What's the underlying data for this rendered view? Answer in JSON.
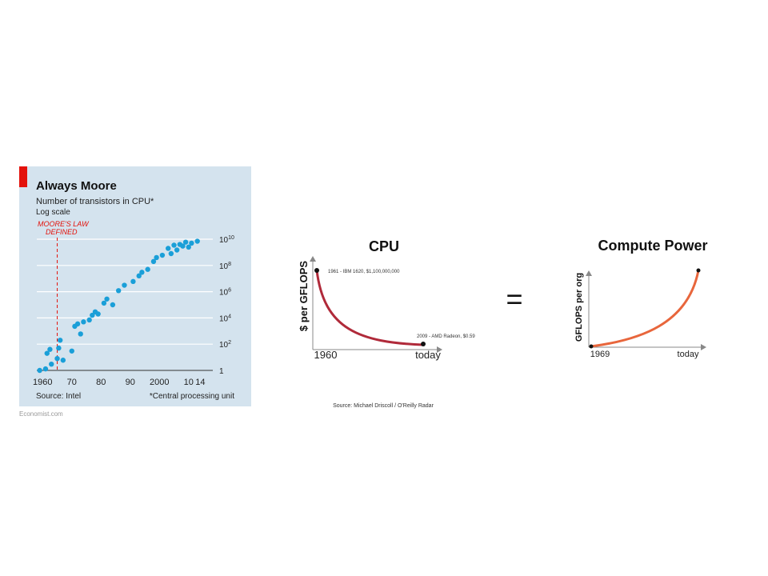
{
  "colors": {
    "panel_bg": "#d4e3ee",
    "accent_red": "#e3120b",
    "dot_blue": "#1a9fd8",
    "cpu_curve": "#b02a3a",
    "compute_curve": "#e8663c"
  },
  "equals_sign": "=",
  "economist_source": "Economist.com",
  "chart_data": [
    {
      "type": "scatter",
      "title": "Always Moore",
      "subtitle": "Number of transistors in CPU*",
      "scale_note": "Log scale",
      "annotation": [
        "MOORE'S LAW",
        "DEFINED"
      ],
      "annotation_x": 1965,
      "source": "Source: Intel",
      "footnote": "*Central processing unit",
      "y_scale": "log",
      "xlim": [
        1958,
        2015
      ],
      "ylim": [
        1,
        10000000000
      ],
      "grid": true,
      "x_ticks": [
        {
          "value": 1960,
          "label": "1960"
        },
        {
          "value": 1970,
          "label": "70"
        },
        {
          "value": 1980,
          "label": "80"
        },
        {
          "value": 1990,
          "label": "90"
        },
        {
          "value": 2000,
          "label": "2000"
        },
        {
          "value": 2010,
          "label": "10"
        },
        {
          "value": 2014,
          "label": "14"
        }
      ],
      "y_ticks": [
        {
          "value": 1,
          "base": "1",
          "exp": ""
        },
        {
          "value": 100,
          "base": "10",
          "exp": "2"
        },
        {
          "value": 10000,
          "base": "10",
          "exp": "4"
        },
        {
          "value": 1000000,
          "base": "10",
          "exp": "6"
        },
        {
          "value": 100000000,
          "base": "10",
          "exp": "8"
        },
        {
          "value": 10000000000,
          "base": "10",
          "exp": "10"
        }
      ],
      "points": [
        [
          1959,
          1
        ],
        [
          1961,
          1.3
        ],
        [
          1961.5,
          20
        ],
        [
          1962.5,
          40
        ],
        [
          1963,
          3
        ],
        [
          1965,
          8
        ],
        [
          1965.5,
          50
        ],
        [
          1966,
          200
        ],
        [
          1967,
          6
        ],
        [
          1970,
          30
        ],
        [
          1971,
          2300
        ],
        [
          1972,
          3500
        ],
        [
          1973,
          600
        ],
        [
          1974,
          5000
        ],
        [
          1976,
          7000
        ],
        [
          1977,
          16000
        ],
        [
          1978,
          29000
        ],
        [
          1979,
          20000
        ],
        [
          1981,
          134000
        ],
        [
          1982,
          275000
        ],
        [
          1984,
          100000
        ],
        [
          1986,
          1200000
        ],
        [
          1988,
          3100000
        ],
        [
          1991,
          6000000
        ],
        [
          1993,
          16000000
        ],
        [
          1994,
          30000000
        ],
        [
          1996,
          50000000
        ],
        [
          1998,
          200000000
        ],
        [
          1999,
          400000000
        ],
        [
          2001,
          600000000
        ],
        [
          2003,
          2000000000
        ],
        [
          2004,
          800000000
        ],
        [
          2005,
          3500000000
        ],
        [
          2006,
          1500000000
        ],
        [
          2007,
          4000000000
        ],
        [
          2008,
          3000000000
        ],
        [
          2009,
          6000000000
        ],
        [
          2010,
          2500000000
        ],
        [
          2011,
          5000000000
        ],
        [
          2013,
          7000000000
        ]
      ]
    },
    {
      "type": "line",
      "title": "CPU",
      "ylabel": "$ per GFLOPS",
      "x_labels": [
        "1960",
        "today"
      ],
      "points": [
        {
          "label": "1961 - IBM 1620, $1,100,000,000"
        },
        {
          "label": "2009 - AMD Radeon, $0.59"
        }
      ],
      "source": "Source: Michael Driscoll / O'Reilly Radar"
    },
    {
      "type": "line",
      "title": "Compute Power",
      "ylabel": "GFLOPS per org",
      "x_labels": [
        "1969",
        "today"
      ]
    }
  ]
}
